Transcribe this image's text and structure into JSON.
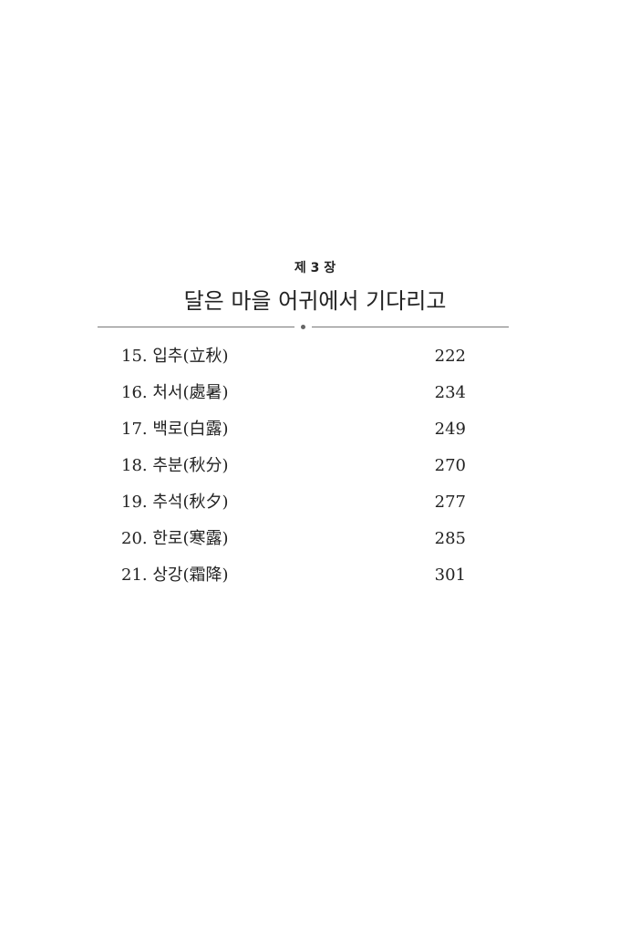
{
  "chapter": {
    "label": "제 3 장",
    "title": "달은 마을 어귀에서 기다리고"
  },
  "entries": [
    {
      "title": "15. 입추(立秋)",
      "page": "222"
    },
    {
      "title": "16. 처서(處暑)",
      "page": "234"
    },
    {
      "title": "17. 백로(白露)",
      "page": "249"
    },
    {
      "title": "18. 추분(秋分)",
      "page": "270"
    },
    {
      "title": "19. 추석(秋夕)",
      "page": "277"
    },
    {
      "title": "20. 한로(寒露)",
      "page": "285"
    },
    {
      "title": "21. 상강(霜降)",
      "page": "301"
    }
  ]
}
